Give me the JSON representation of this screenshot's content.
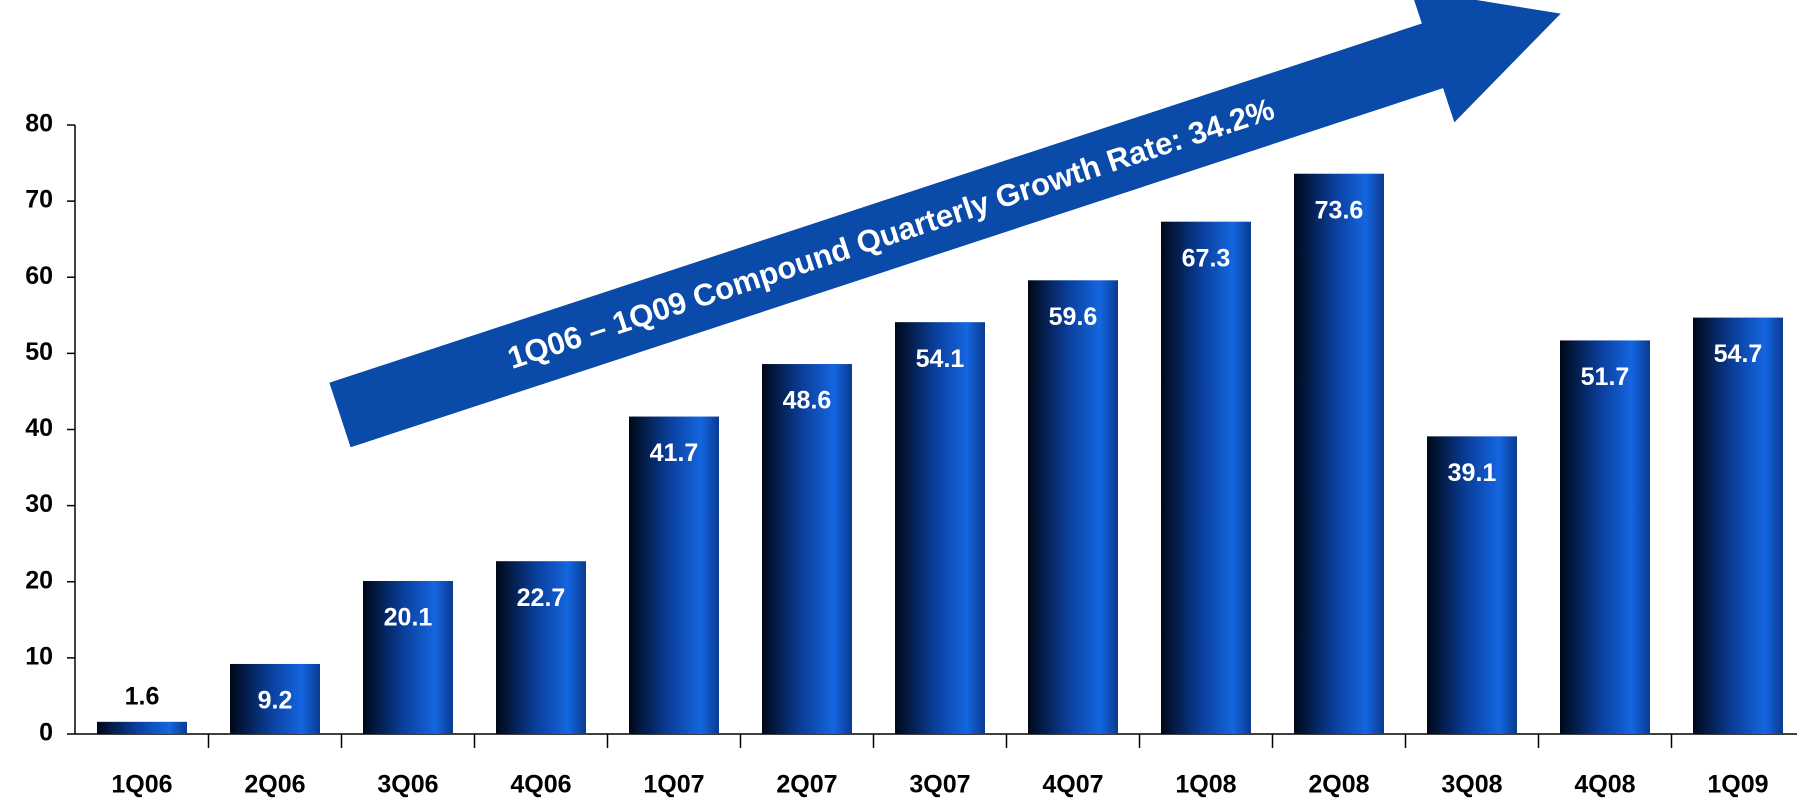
{
  "chart_data": {
    "type": "bar",
    "annotation": "1Q06 – 1Q09 Compound Quarterly Growth Rate: 34.2%",
    "categories": [
      "1Q06",
      "2Q06",
      "3Q06",
      "4Q06",
      "1Q07",
      "2Q07",
      "3Q07",
      "4Q07",
      "1Q08",
      "2Q08",
      "3Q08",
      "4Q08",
      "1Q09"
    ],
    "values": [
      1.6,
      9.2,
      20.1,
      22.7,
      41.7,
      48.6,
      54.1,
      59.6,
      67.3,
      73.6,
      39.1,
      51.7,
      54.7
    ],
    "color": "#0a4fc0",
    "ylim": [
      0,
      80
    ],
    "yticks": [
      0,
      10,
      20,
      30,
      40,
      50,
      60,
      70,
      80
    ],
    "grid": false
  }
}
